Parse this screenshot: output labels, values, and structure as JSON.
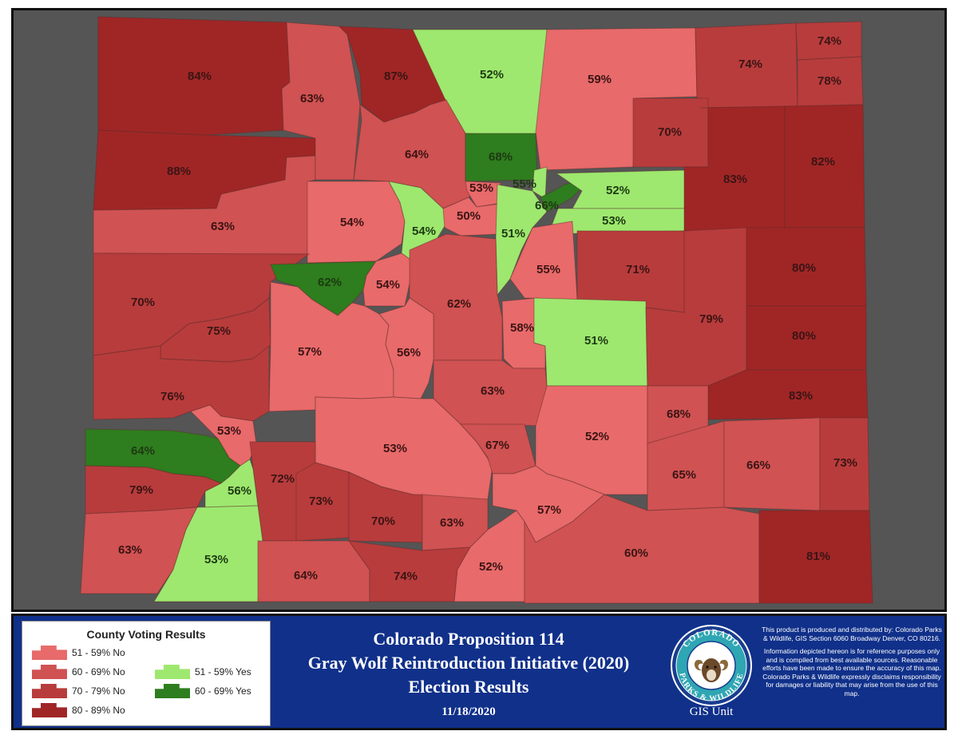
{
  "colors": {
    "no_51_59": "#e86a6a",
    "no_60_69": "#d05252",
    "no_70_79": "#b83c3c",
    "no_80_89": "#a02626",
    "yes_51_59": "#9ee86f",
    "yes_60_69": "#2e7d1e"
  },
  "counties": [
    {
      "label": "84%",
      "cat": "no_80_89"
    },
    {
      "label": "88%",
      "cat": "no_80_89"
    },
    {
      "label": "63%",
      "cat": "no_60_69"
    },
    {
      "label": "63%",
      "cat": "no_60_69"
    },
    {
      "label": "87%",
      "cat": "no_80_89"
    },
    {
      "label": "52%",
      "cat": "yes_51_59"
    },
    {
      "label": "59%",
      "cat": "no_51_59"
    },
    {
      "label": "74%",
      "cat": "no_70_79"
    },
    {
      "label": "74%",
      "cat": "no_70_79"
    },
    {
      "label": "78%",
      "cat": "no_70_79"
    },
    {
      "label": "64%",
      "cat": "no_60_69"
    },
    {
      "label": "68%",
      "cat": "yes_60_69"
    },
    {
      "label": "70%",
      "cat": "no_70_79"
    },
    {
      "label": "83%",
      "cat": "no_80_89"
    },
    {
      "label": "82%",
      "cat": "no_80_89"
    },
    {
      "label": "53%",
      "cat": "no_51_59"
    },
    {
      "label": "55%",
      "cat": "yes_51_59"
    },
    {
      "label": "66%",
      "cat": "yes_60_69"
    },
    {
      "label": "52%",
      "cat": "yes_51_59"
    },
    {
      "label": "53%",
      "cat": "yes_51_59"
    },
    {
      "label": "54%",
      "cat": "no_51_59"
    },
    {
      "label": "54%",
      "cat": "yes_51_59"
    },
    {
      "label": "50%",
      "cat": "no_51_59"
    },
    {
      "label": "51%",
      "cat": "yes_51_59"
    },
    {
      "label": "70%",
      "cat": "no_70_79"
    },
    {
      "label": "62%",
      "cat": "yes_60_69"
    },
    {
      "label": "54%",
      "cat": "no_51_59"
    },
    {
      "label": "62%",
      "cat": "no_60_69"
    },
    {
      "label": "55%",
      "cat": "no_51_59"
    },
    {
      "label": "71%",
      "cat": "no_70_79"
    },
    {
      "label": "80%",
      "cat": "no_80_89"
    },
    {
      "label": "75%",
      "cat": "no_70_79"
    },
    {
      "label": "57%",
      "cat": "no_51_59"
    },
    {
      "label": "56%",
      "cat": "no_51_59"
    },
    {
      "label": "58%",
      "cat": "no_51_59"
    },
    {
      "label": "51%",
      "cat": "yes_51_59"
    },
    {
      "label": "79%",
      "cat": "no_70_79"
    },
    {
      "label": "80%",
      "cat": "no_80_89"
    },
    {
      "label": "76%",
      "cat": "no_70_79"
    },
    {
      "label": "63%",
      "cat": "no_60_69"
    },
    {
      "label": "83%",
      "cat": "no_80_89"
    },
    {
      "label": "53%",
      "cat": "no_51_59"
    },
    {
      "label": "53%",
      "cat": "no_51_59"
    },
    {
      "label": "67%",
      "cat": "no_60_69"
    },
    {
      "label": "52%",
      "cat": "no_51_59"
    },
    {
      "label": "68%",
      "cat": "no_60_69"
    },
    {
      "label": "64%",
      "cat": "yes_60_69"
    },
    {
      "label": "72%",
      "cat": "no_70_79"
    },
    {
      "label": "65%",
      "cat": "no_60_69"
    },
    {
      "label": "66%",
      "cat": "no_60_69"
    },
    {
      "label": "73%",
      "cat": "no_70_79"
    },
    {
      "label": "79%",
      "cat": "no_70_79"
    },
    {
      "label": "56%",
      "cat": "yes_51_59"
    },
    {
      "label": "73%",
      "cat": "no_70_79"
    },
    {
      "label": "70%",
      "cat": "no_70_79"
    },
    {
      "label": "63%",
      "cat": "no_60_69"
    },
    {
      "label": "57%",
      "cat": "no_51_59"
    },
    {
      "label": "63%",
      "cat": "no_60_69"
    },
    {
      "label": "53%",
      "cat": "yes_51_59"
    },
    {
      "label": "64%",
      "cat": "no_60_69"
    },
    {
      "label": "74%",
      "cat": "no_70_79"
    },
    {
      "label": "52%",
      "cat": "no_51_59"
    },
    {
      "label": "60%",
      "cat": "no_60_69"
    },
    {
      "label": "81%",
      "cat": "no_80_89"
    }
  ],
  "legend": {
    "title": "County Voting Results",
    "items": [
      {
        "label": "51 - 59% No",
        "cat": "no_51_59"
      },
      {
        "label": "60 - 69% No",
        "cat": "no_60_69"
      },
      {
        "label": "70 - 79% No",
        "cat": "no_70_79"
      },
      {
        "label": "80 - 89% No",
        "cat": "no_80_89"
      },
      {
        "label": "51 - 59% Yes",
        "cat": "yes_51_59"
      },
      {
        "label": "60 - 69% Yes",
        "cat": "yes_60_69"
      }
    ]
  },
  "title": {
    "line1": "Colorado Proposition 114",
    "line2": "Gray Wolf Reintroduction Initiative (2020)",
    "line3": "Election Results"
  },
  "date": "11/18/2020",
  "logo": {
    "text_top": "COLORADO",
    "text_bottom": "PARKS & WILDLIFE",
    "icon": "bighorn-sheep-icon"
  },
  "gis_unit": "GIS Unit",
  "disclaimer": {
    "p1": "This product is produced and distributed by: Colorado Parks & Wildlife, GIS Section 6060 Broadway Denver, CO 80216.",
    "p2": "Information depicted hereon is for reference purposes only and is compiled from best available sources. Reasonable efforts have been made to ensure the accuracy of this map. Colorado Parks & Wildlife expressly disclaims responsibility for damages or liability that may arise from the use of this map."
  }
}
